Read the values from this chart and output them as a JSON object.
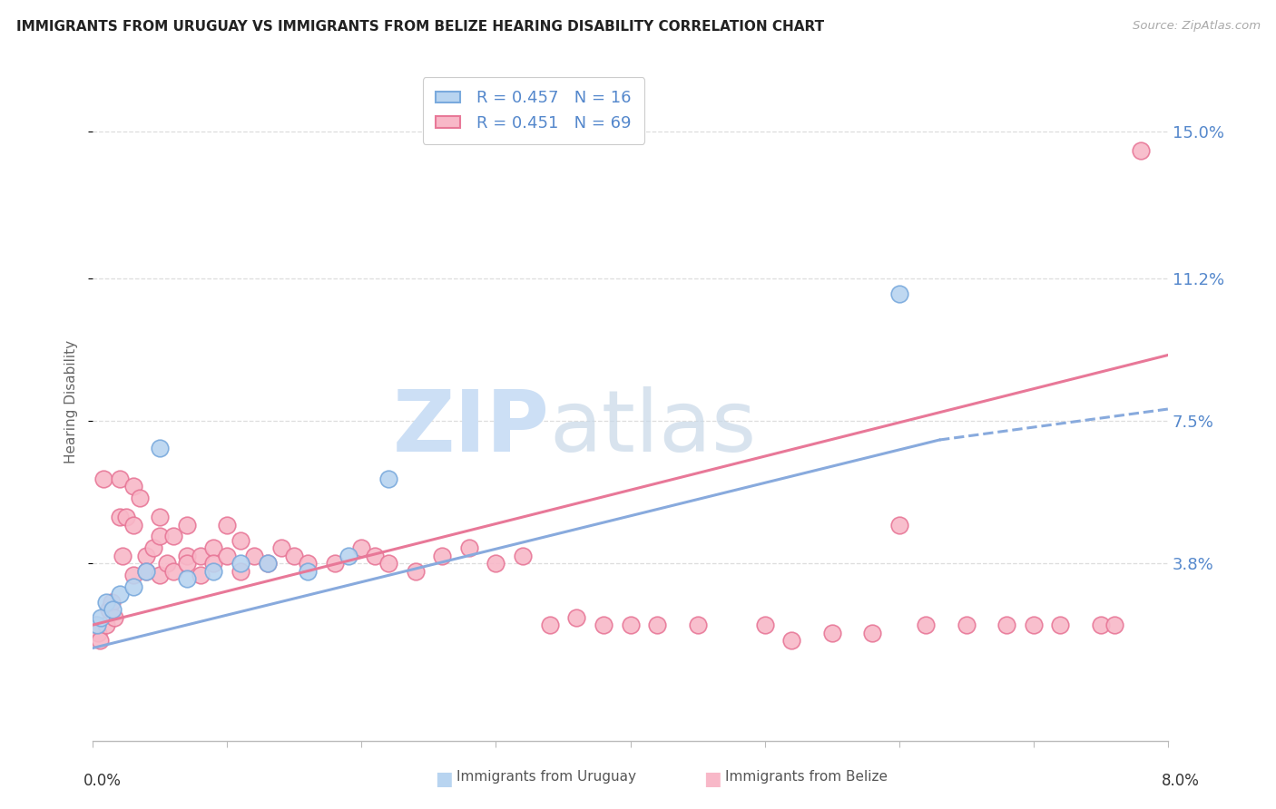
{
  "title": "IMMIGRANTS FROM URUGUAY VS IMMIGRANTS FROM BELIZE HEARING DISABILITY CORRELATION CHART",
  "source": "Source: ZipAtlas.com",
  "ylabel": "Hearing Disability",
  "ytick_labels": [
    "3.8%",
    "7.5%",
    "11.2%",
    "15.0%"
  ],
  "ytick_values": [
    0.038,
    0.075,
    0.112,
    0.15
  ],
  "xlim": [
    0.0,
    0.08
  ],
  "ylim": [
    -0.008,
    0.168
  ],
  "legend_uruguay": "R = 0.457   N = 16",
  "legend_belize": "R = 0.451   N = 69",
  "color_uruguay_fill": "#b8d4f0",
  "color_uruguay_edge": "#7aaadd",
  "color_belize_fill": "#f8b8c8",
  "color_belize_edge": "#e87898",
  "color_line_uruguay": "#88aadd",
  "color_line_belize": "#e87898",
  "color_text_right": "#5588cc",
  "color_title": "#222222",
  "color_source": "#aaaaaa",
  "uruguay_x": [
    0.0003,
    0.0006,
    0.001,
    0.0015,
    0.002,
    0.003,
    0.004,
    0.005,
    0.007,
    0.009,
    0.011,
    0.013,
    0.016,
    0.019,
    0.022,
    0.06
  ],
  "uruguay_y": [
    0.022,
    0.024,
    0.028,
    0.026,
    0.03,
    0.032,
    0.036,
    0.068,
    0.034,
    0.036,
    0.038,
    0.038,
    0.036,
    0.04,
    0.06,
    0.108
  ],
  "belize_x": [
    0.0002,
    0.0004,
    0.0005,
    0.0008,
    0.001,
    0.0012,
    0.0014,
    0.0016,
    0.002,
    0.002,
    0.0022,
    0.0025,
    0.003,
    0.003,
    0.003,
    0.0035,
    0.004,
    0.004,
    0.0045,
    0.005,
    0.005,
    0.005,
    0.0055,
    0.006,
    0.006,
    0.007,
    0.007,
    0.007,
    0.008,
    0.008,
    0.009,
    0.009,
    0.01,
    0.01,
    0.011,
    0.011,
    0.012,
    0.013,
    0.014,
    0.015,
    0.016,
    0.018,
    0.02,
    0.021,
    0.022,
    0.024,
    0.026,
    0.028,
    0.03,
    0.032,
    0.034,
    0.036,
    0.038,
    0.04,
    0.042,
    0.045,
    0.05,
    0.052,
    0.055,
    0.058,
    0.06,
    0.062,
    0.065,
    0.068,
    0.07,
    0.072,
    0.075,
    0.076,
    0.078
  ],
  "belize_y": [
    0.022,
    0.02,
    0.018,
    0.06,
    0.022,
    0.026,
    0.028,
    0.024,
    0.06,
    0.05,
    0.04,
    0.05,
    0.058,
    0.048,
    0.035,
    0.055,
    0.04,
    0.036,
    0.042,
    0.05,
    0.045,
    0.035,
    0.038,
    0.045,
    0.036,
    0.04,
    0.048,
    0.038,
    0.04,
    0.035,
    0.042,
    0.038,
    0.048,
    0.04,
    0.044,
    0.036,
    0.04,
    0.038,
    0.042,
    0.04,
    0.038,
    0.038,
    0.042,
    0.04,
    0.038,
    0.036,
    0.04,
    0.042,
    0.038,
    0.04,
    0.022,
    0.024,
    0.022,
    0.022,
    0.022,
    0.022,
    0.022,
    0.018,
    0.02,
    0.02,
    0.048,
    0.022,
    0.022,
    0.022,
    0.022,
    0.022,
    0.022,
    0.022,
    0.145
  ],
  "trend_uru_x0": 0.0,
  "trend_uru_x1": 0.063,
  "trend_uru_y0": 0.016,
  "trend_uru_y1": 0.07,
  "trend_uru_dash_x0": 0.063,
  "trend_uru_dash_x1": 0.08,
  "trend_uru_dash_y0": 0.07,
  "trend_uru_dash_y1": 0.078,
  "trend_bel_x0": 0.0,
  "trend_bel_x1": 0.08,
  "trend_bel_y0": 0.022,
  "trend_bel_y1": 0.092
}
